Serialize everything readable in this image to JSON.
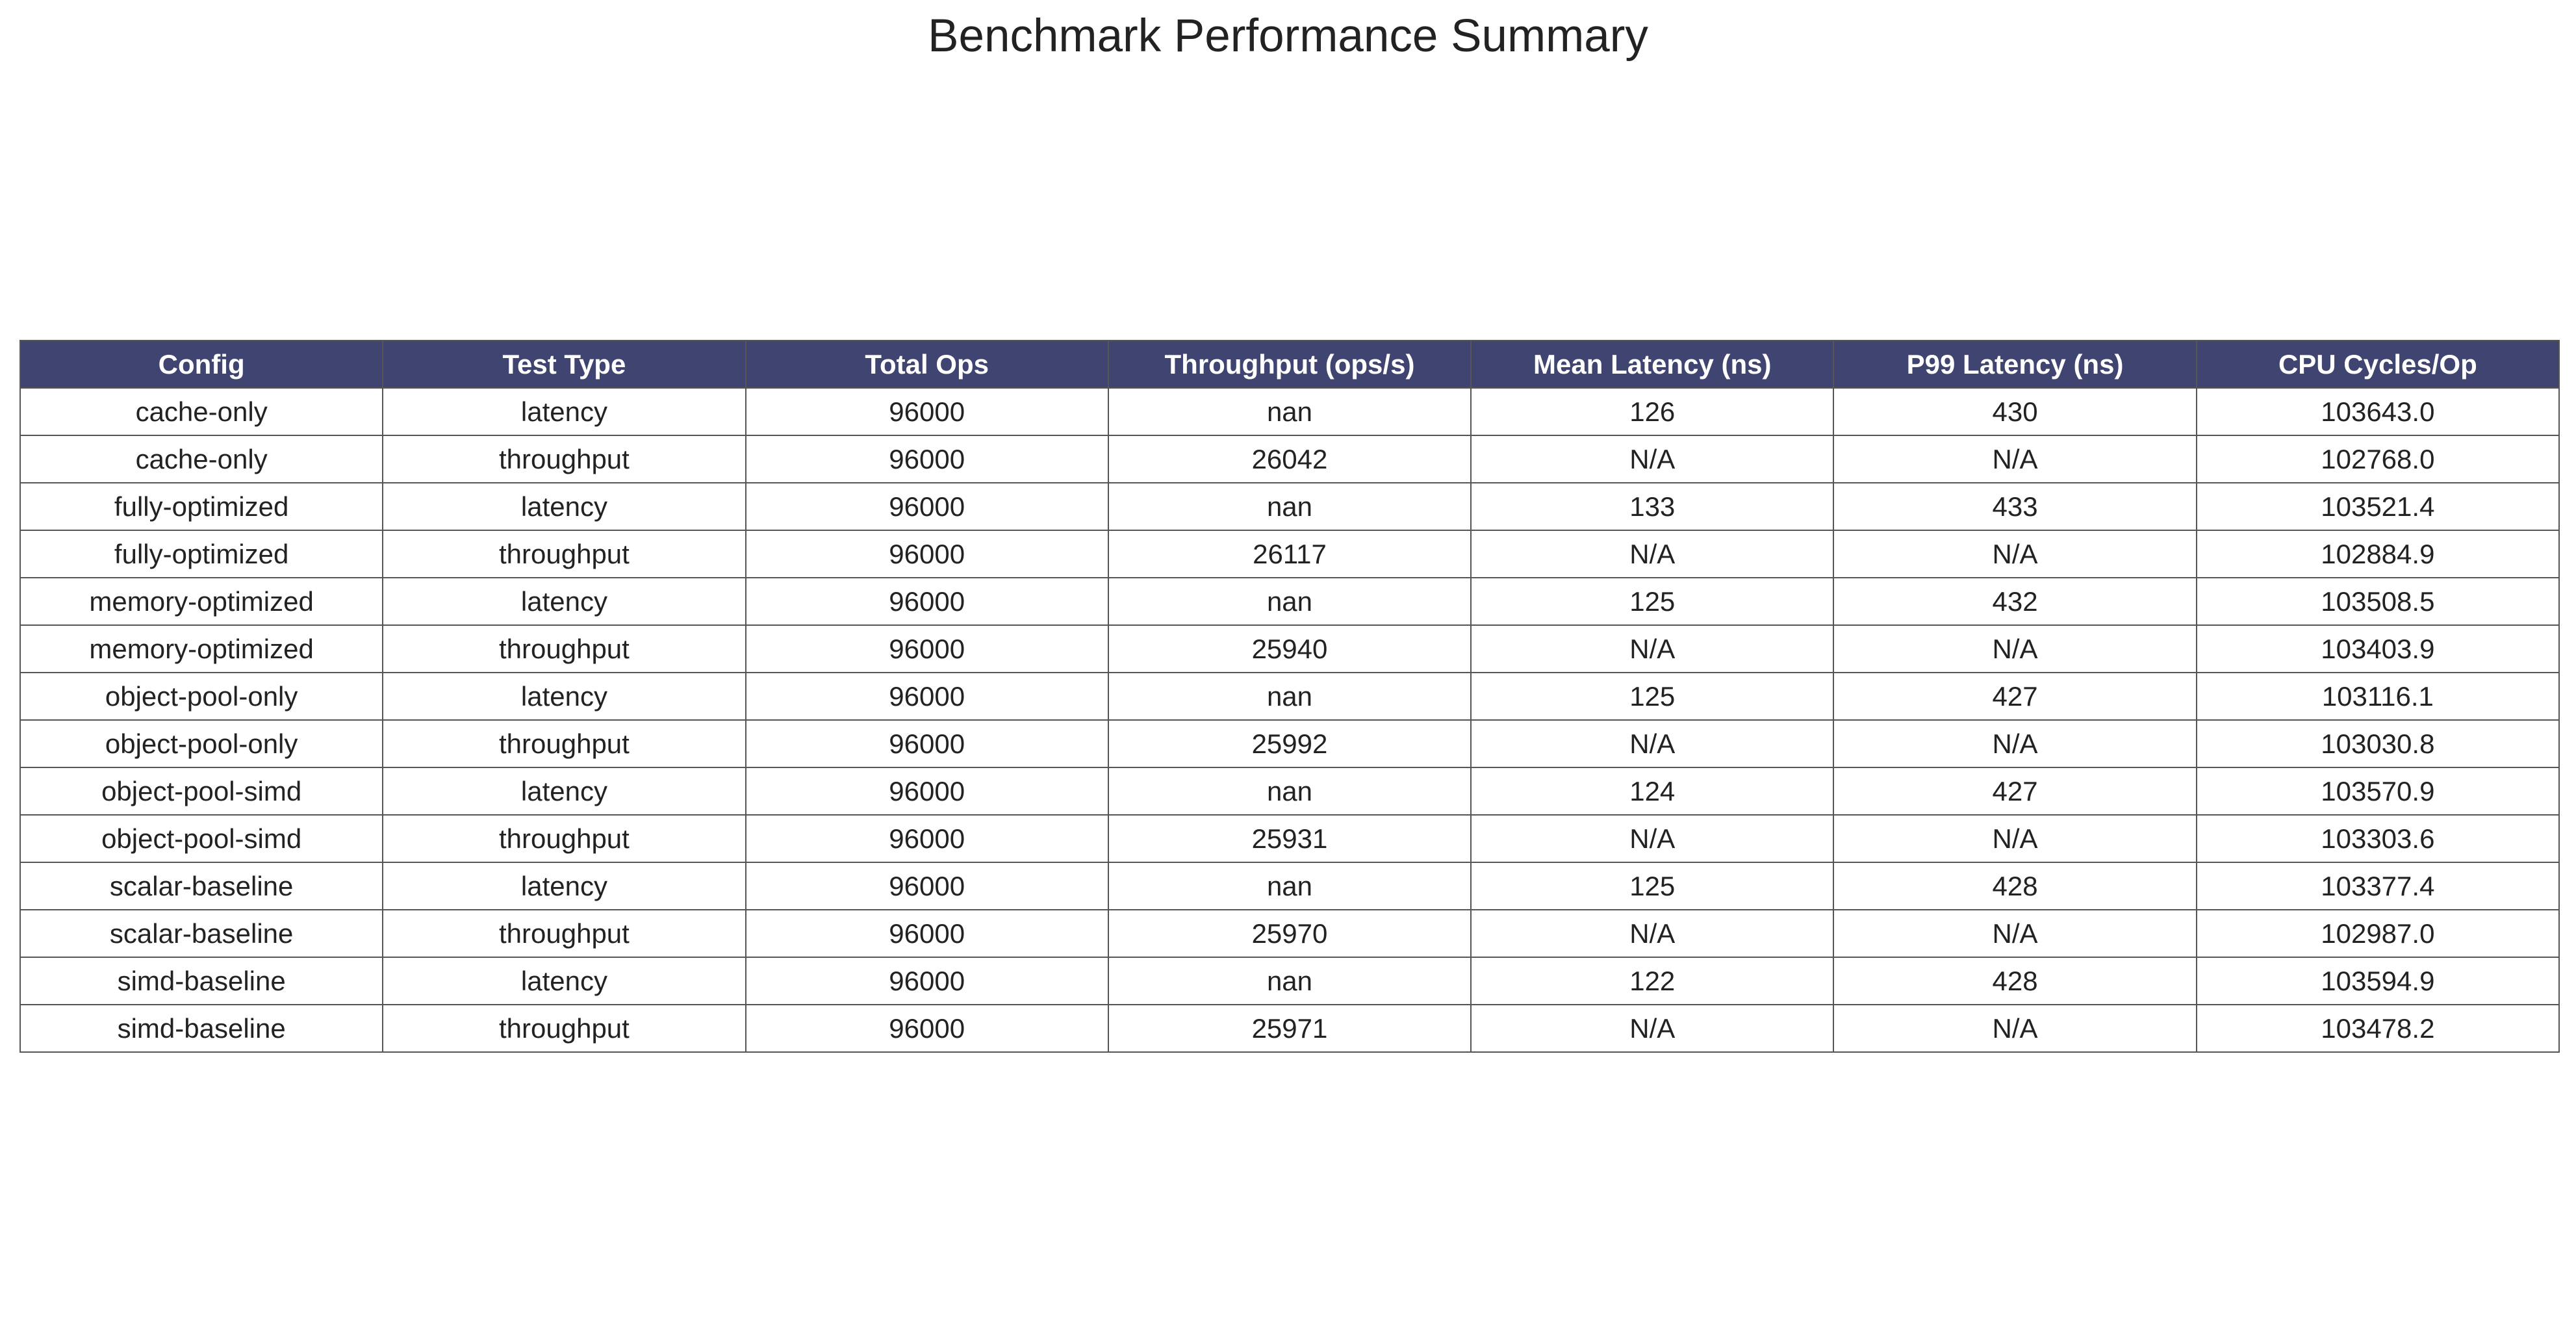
{
  "title": "Benchmark Performance Summary",
  "colors": {
    "header_bg": "#3f4470",
    "header_text": "#ffffff",
    "cell_text": "#222222",
    "border": "#555555"
  },
  "chart_data": {
    "type": "table",
    "title": "Benchmark Performance Summary",
    "columns": [
      "Config",
      "Test Type",
      "Total Ops",
      "Throughput (ops/s)",
      "Mean Latency (ns)",
      "P99 Latency (ns)",
      "CPU Cycles/Op"
    ],
    "rows": [
      [
        "cache-only",
        "latency",
        "96000",
        "nan",
        "126",
        "430",
        "103643.0"
      ],
      [
        "cache-only",
        "throughput",
        "96000",
        "26042",
        "N/A",
        "N/A",
        "102768.0"
      ],
      [
        "fully-optimized",
        "latency",
        "96000",
        "nan",
        "133",
        "433",
        "103521.4"
      ],
      [
        "fully-optimized",
        "throughput",
        "96000",
        "26117",
        "N/A",
        "N/A",
        "102884.9"
      ],
      [
        "memory-optimized",
        "latency",
        "96000",
        "nan",
        "125",
        "432",
        "103508.5"
      ],
      [
        "memory-optimized",
        "throughput",
        "96000",
        "25940",
        "N/A",
        "N/A",
        "103403.9"
      ],
      [
        "object-pool-only",
        "latency",
        "96000",
        "nan",
        "125",
        "427",
        "103116.1"
      ],
      [
        "object-pool-only",
        "throughput",
        "96000",
        "25992",
        "N/A",
        "N/A",
        "103030.8"
      ],
      [
        "object-pool-simd",
        "latency",
        "96000",
        "nan",
        "124",
        "427",
        "103570.9"
      ],
      [
        "object-pool-simd",
        "throughput",
        "96000",
        "25931",
        "N/A",
        "N/A",
        "103303.6"
      ],
      [
        "scalar-baseline",
        "latency",
        "96000",
        "nan",
        "125",
        "428",
        "103377.4"
      ],
      [
        "scalar-baseline",
        "throughput",
        "96000",
        "25970",
        "N/A",
        "N/A",
        "102987.0"
      ],
      [
        "simd-baseline",
        "latency",
        "96000",
        "nan",
        "122",
        "428",
        "103594.9"
      ],
      [
        "simd-baseline",
        "throughput",
        "96000",
        "25971",
        "N/A",
        "N/A",
        "103478.2"
      ]
    ]
  }
}
